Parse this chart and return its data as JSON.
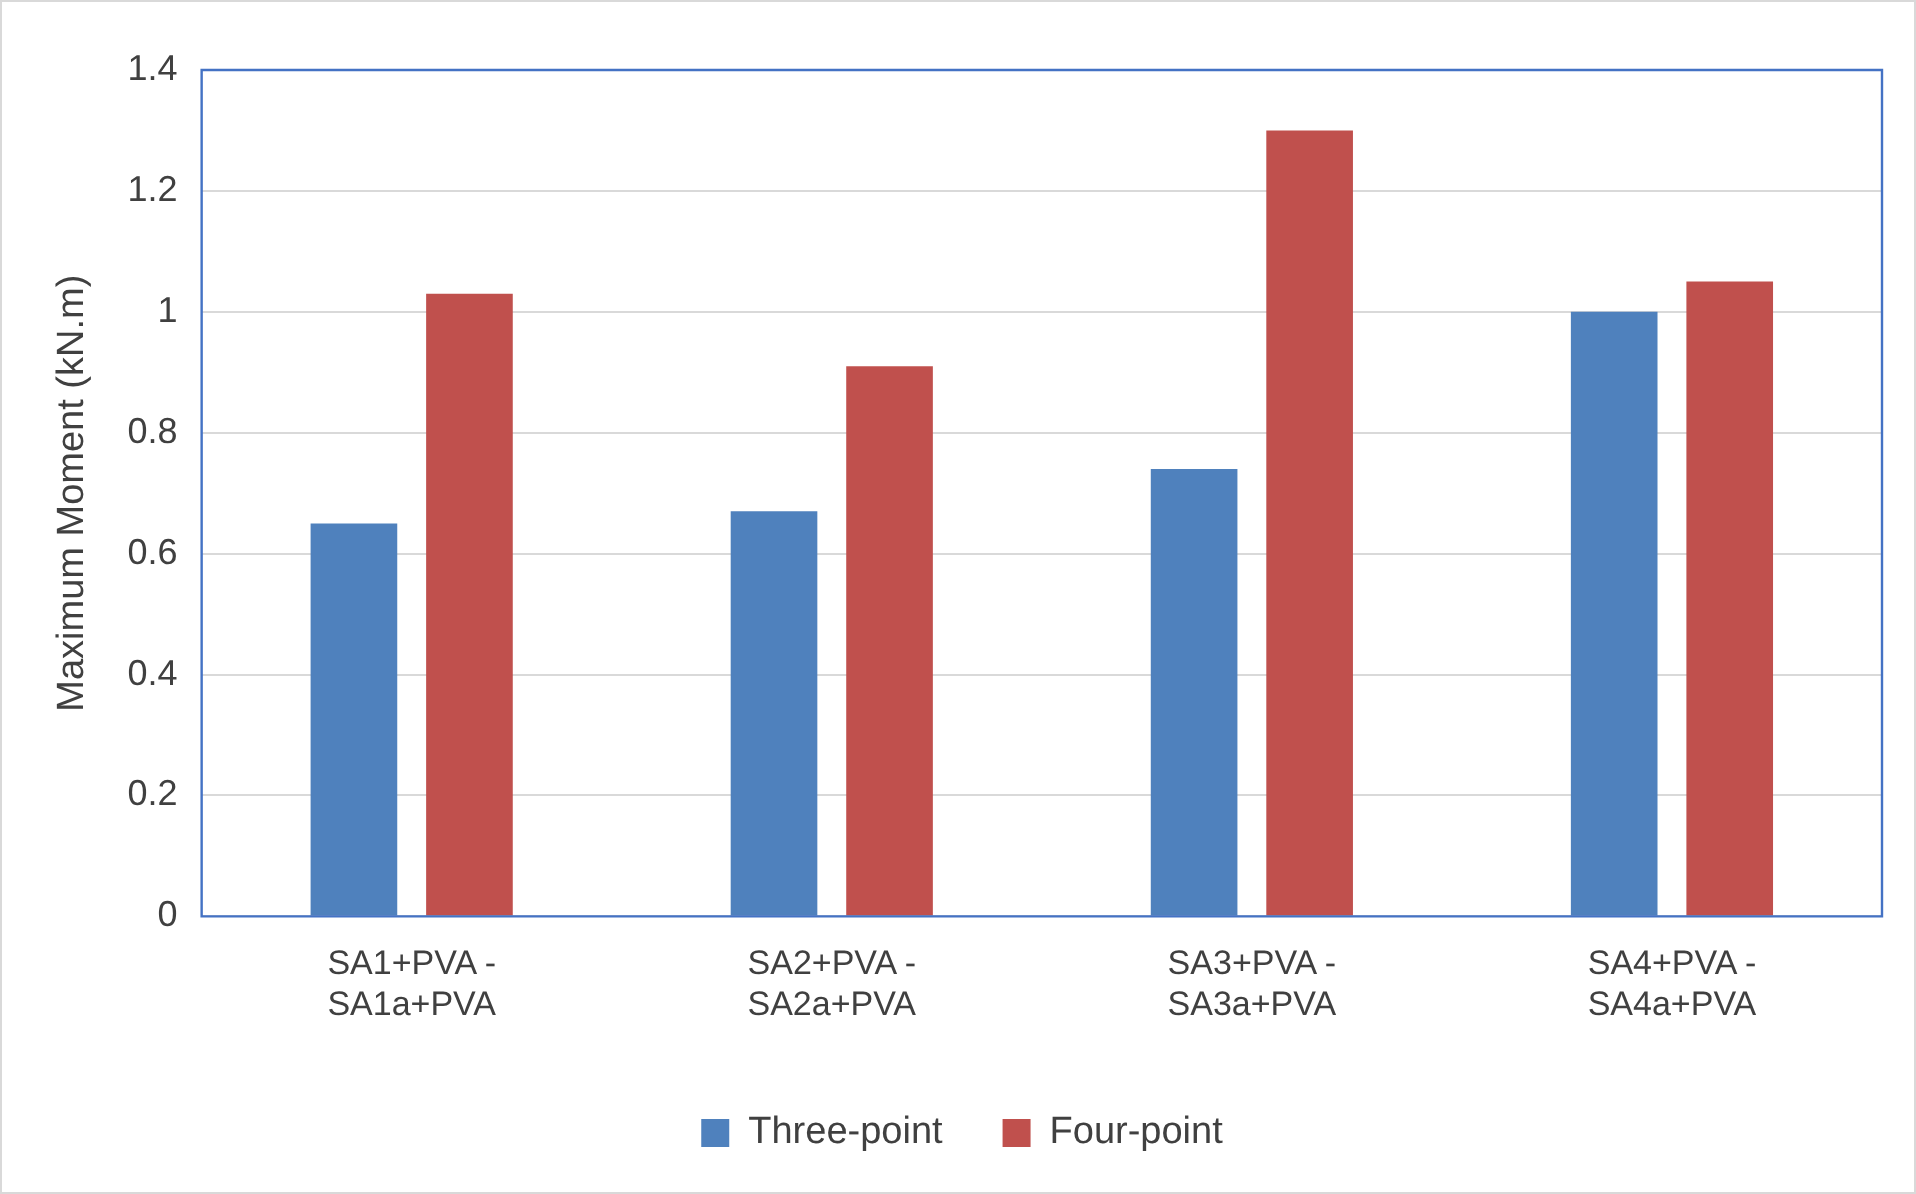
{
  "chart_data": {
    "type": "bar",
    "ylabel": "Maximum Moment (kN.m)",
    "categories": [
      "SA1+PVA -\nSA1a+PVA",
      "SA2+PVA -\nSA2a+PVA",
      "SA3+PVA -\nSA3a+PVA",
      "SA4+PVA -\nSA4a+PVA"
    ],
    "series": [
      {
        "name": "Three-point",
        "color": "#4f81bd",
        "values": [
          0.65,
          0.67,
          0.74,
          1.0
        ]
      },
      {
        "name": "Four-point",
        "color": "#c0504d",
        "values": [
          1.03,
          0.91,
          1.3,
          1.05
        ]
      }
    ],
    "ylim": [
      0,
      1.4
    ],
    "yticks": [
      0,
      0.2,
      0.4,
      0.6,
      0.8,
      1,
      1.2,
      1.4
    ],
    "grid": "y",
    "legend": "bottom"
  }
}
